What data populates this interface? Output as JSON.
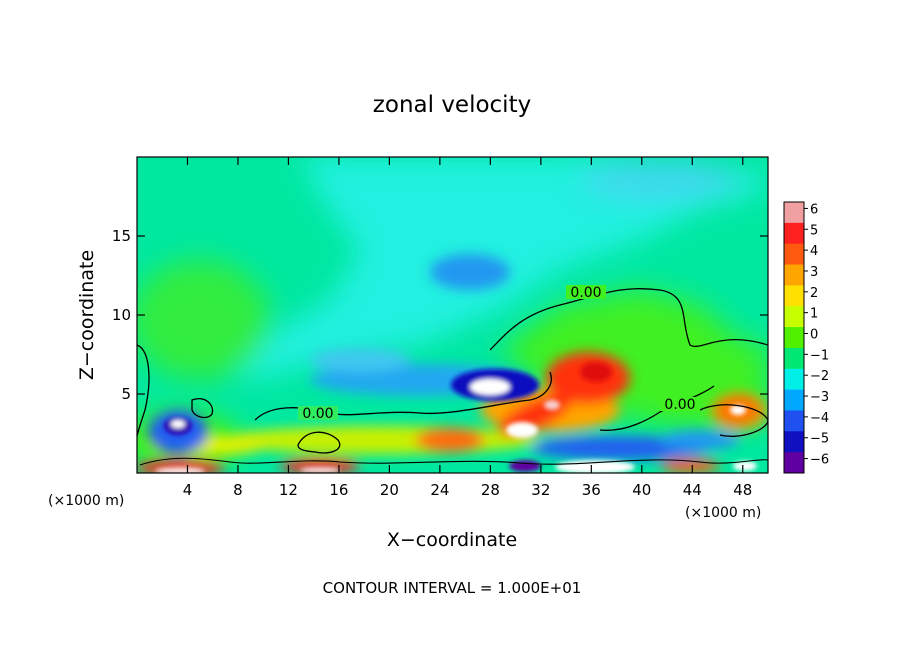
{
  "chart_data": {
    "type": "heatmap",
    "title": "zonal velocity",
    "xlabel": "X−coordinate",
    "ylabel": "Z−coordinate",
    "x_unit_left": "(×1000 m)",
    "x_unit_right": "(×1000 m)",
    "xlim": [
      0,
      50
    ],
    "ylim": [
      0,
      20
    ],
    "x_ticks": [
      4,
      8,
      12,
      16,
      20,
      24,
      28,
      32,
      36,
      40,
      44,
      48
    ],
    "y_ticks": [
      5,
      10,
      15
    ],
    "colorbar": {
      "levels": [
        6,
        5,
        4,
        3,
        2,
        1,
        0,
        -1,
        -2,
        -3,
        -4,
        -5,
        -6
      ],
      "labels": [
        "6",
        "5",
        "4",
        "3",
        "2",
        "1",
        "0",
        "−1",
        "−2",
        "−3",
        "−4",
        "−5",
        "−6"
      ],
      "colors": [
        "#f0a0a0",
        "#ff2020",
        "#ff5a10",
        "#ffa500",
        "#ffe000",
        "#c8ff00",
        "#50f000",
        "#00e873",
        "#00f0e8",
        "#00a8ff",
        "#2050f0",
        "#1010c0",
        "#6000a0"
      ]
    },
    "contour_label": "0.00",
    "contour_interval_text": "CONTOUR INTERVAL = 1.000E+01",
    "features": [
      {
        "x": 27.5,
        "z": 5.2,
        "value": -6
      },
      {
        "x": 26.5,
        "z": 12.3,
        "value": -2.5
      },
      {
        "x": 34.5,
        "z": 6.2,
        "value": 4
      },
      {
        "x": 37.0,
        "z": 5.5,
        "value": 3
      },
      {
        "x": 33.0,
        "z": 3.0,
        "value": 5
      },
      {
        "x": 30.0,
        "z": 2.7,
        "value": 5
      },
      {
        "x": 24.0,
        "z": 2.0,
        "value": 4
      },
      {
        "x": 3.2,
        "z": 3.0,
        "value": -5
      },
      {
        "x": 47.5,
        "z": 4.0,
        "value": 5
      },
      {
        "x": 5.0,
        "z": 0.3,
        "value": 6
      },
      {
        "x": 14.0,
        "z": 0.3,
        "value": 5
      },
      {
        "x": 36.5,
        "z": 0.3,
        "value": -6
      },
      {
        "x": 30.5,
        "z": 0.4,
        "value": -5
      },
      {
        "x": 46.5,
        "z": 1.5,
        "value": -4
      }
    ]
  }
}
